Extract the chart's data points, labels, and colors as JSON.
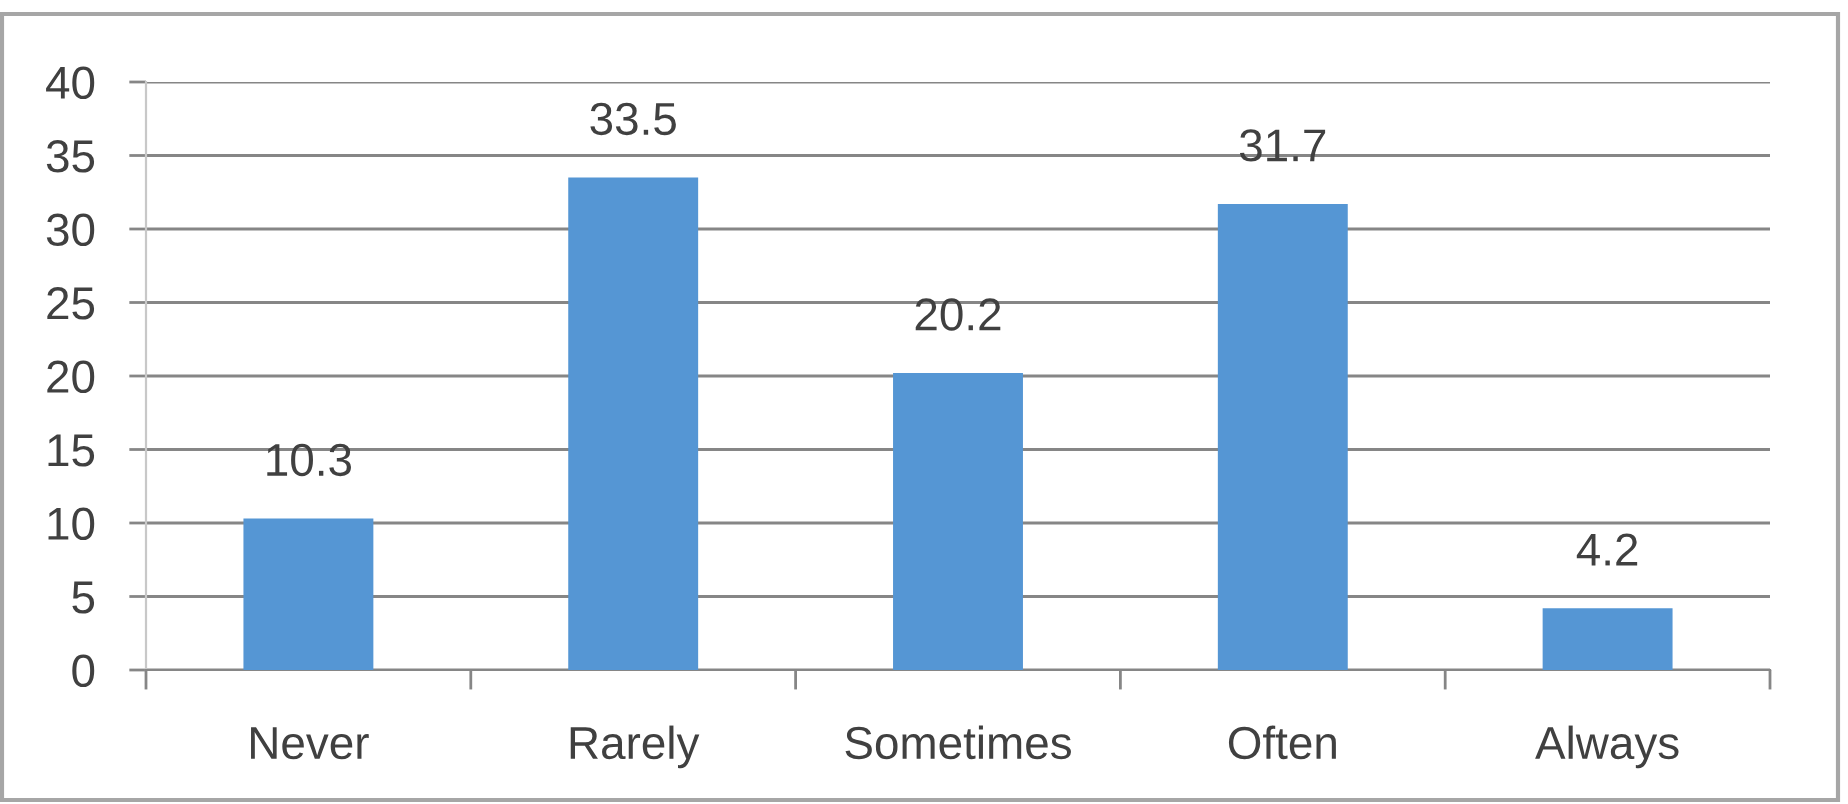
{
  "chart_data": {
    "type": "bar",
    "categories": [
      "Never",
      "Rarely",
      "Sometimes",
      "Often",
      "Always"
    ],
    "values": [
      10.3,
      33.5,
      20.2,
      31.7,
      4.2
    ],
    "color": "#5596d4",
    "ylim": [
      0,
      40
    ],
    "yticks": [
      0,
      5,
      10,
      15,
      20,
      25,
      30,
      35,
      40
    ],
    "grid": "y",
    "data_labels": true
  }
}
